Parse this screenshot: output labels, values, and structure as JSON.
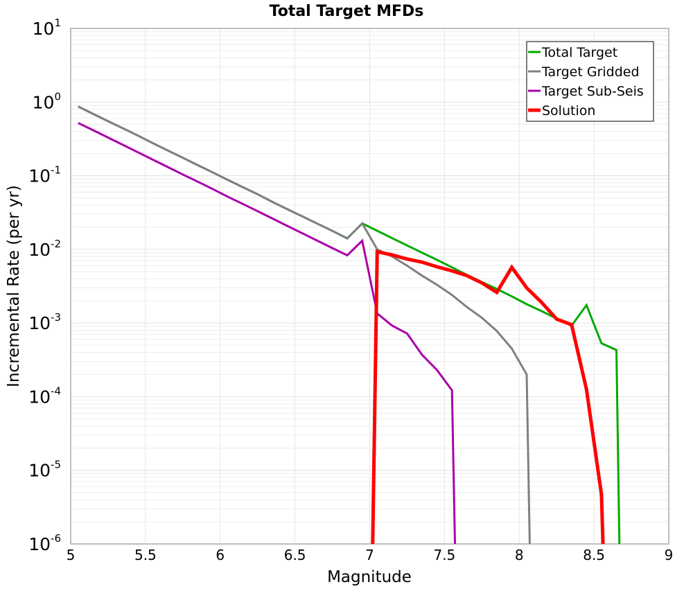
{
  "chart_data": {
    "type": "line",
    "title": "Total Target MFDs",
    "xlabel": "Magnitude",
    "ylabel": "Incremental Rate (per yr)",
    "xlim": [
      5,
      9
    ],
    "ylim": [
      1e-06,
      10
    ],
    "yscale": "log",
    "grid": true,
    "legend_position": "upper right",
    "x_ticks": [
      "5",
      "5.5",
      "6",
      "6.5",
      "7",
      "7.5",
      "8",
      "8.5",
      "9"
    ],
    "y_ticks": [
      {
        "base": "10",
        "exp": "1"
      },
      {
        "base": "10",
        "exp": "0"
      },
      {
        "base": "10",
        "exp": "-1"
      },
      {
        "base": "10",
        "exp": "-2"
      },
      {
        "base": "10",
        "exp": "-3"
      },
      {
        "base": "10",
        "exp": "-4"
      },
      {
        "base": "10",
        "exp": "-5"
      },
      {
        "base": "10",
        "exp": "-6"
      }
    ],
    "series": [
      {
        "name": "Total Target",
        "color": "#00aa00",
        "width": 3,
        "x": [
          5.05,
          5.15,
          5.25,
          5.35,
          5.45,
          5.55,
          5.65,
          5.75,
          5.85,
          5.95,
          6.05,
          6.15,
          6.25,
          6.35,
          6.45,
          6.55,
          6.65,
          6.75,
          6.85,
          6.95,
          7.05,
          7.15,
          7.25,
          7.35,
          7.45,
          7.55,
          7.65,
          7.75,
          7.85,
          7.95,
          8.05,
          8.15,
          8.25,
          8.35,
          8.45,
          8.55,
          8.65,
          8.67
        ],
        "y": [
          0.87,
          0.69,
          0.55,
          0.44,
          0.35,
          0.276,
          0.22,
          0.175,
          0.139,
          0.111,
          0.088,
          0.07,
          0.056,
          0.044,
          0.035,
          0.028,
          0.0223,
          0.0178,
          0.0141,
          0.0225,
          0.0179,
          0.0142,
          0.0113,
          0.009,
          0.0072,
          0.0057,
          0.0045,
          0.0036,
          0.0029,
          0.0023,
          0.0018,
          0.00145,
          0.00115,
          0.00092,
          0.00175,
          0.00053,
          0.00043,
          1e-06
        ]
      },
      {
        "name": "Target Gridded",
        "color": "#808080",
        "width": 3,
        "x": [
          5.05,
          5.15,
          5.25,
          5.35,
          5.45,
          5.55,
          5.65,
          5.75,
          5.85,
          5.95,
          6.05,
          6.15,
          6.25,
          6.35,
          6.45,
          6.55,
          6.65,
          6.75,
          6.85,
          6.95,
          7.05,
          7.15,
          7.25,
          7.35,
          7.45,
          7.55,
          7.65,
          7.75,
          7.85,
          7.95,
          8.05,
          8.07
        ],
        "y": [
          0.87,
          0.69,
          0.55,
          0.44,
          0.35,
          0.276,
          0.22,
          0.175,
          0.139,
          0.111,
          0.088,
          0.07,
          0.056,
          0.044,
          0.035,
          0.028,
          0.0223,
          0.0178,
          0.0141,
          0.0225,
          0.01,
          0.008,
          0.006,
          0.0044,
          0.0033,
          0.0024,
          0.00165,
          0.00118,
          0.00078,
          0.00045,
          0.0002,
          1e-06
        ]
      },
      {
        "name": "Target Sub-Seis",
        "color": "#aa00aa",
        "width": 3,
        "x": [
          5.05,
          5.15,
          5.25,
          5.35,
          5.45,
          5.55,
          5.65,
          5.75,
          5.85,
          5.95,
          6.05,
          6.15,
          6.25,
          6.35,
          6.45,
          6.55,
          6.65,
          6.75,
          6.85,
          6.95,
          7.05,
          7.15,
          7.25,
          7.35,
          7.45,
          7.55,
          7.57
        ],
        "y": [
          0.52,
          0.415,
          0.33,
          0.262,
          0.208,
          0.165,
          0.131,
          0.104,
          0.083,
          0.066,
          0.052,
          0.0415,
          0.033,
          0.0262,
          0.0208,
          0.0165,
          0.0131,
          0.0104,
          0.0083,
          0.0131,
          0.00135,
          0.00092,
          0.00072,
          0.00037,
          0.00023,
          0.000122,
          1e-06
        ]
      },
      {
        "name": "Solution",
        "color": "#ff0000",
        "width": 5,
        "x": [
          7.02,
          7.05,
          7.15,
          7.25,
          7.35,
          7.45,
          7.55,
          7.65,
          7.75,
          7.85,
          7.95,
          8.05,
          8.15,
          8.25,
          8.35,
          8.45,
          8.55,
          8.56
        ],
        "y": [
          1e-06,
          0.0093,
          0.0084,
          0.0074,
          0.0067,
          0.0058,
          0.0051,
          0.0044,
          0.0035,
          0.0026,
          0.0057,
          0.003,
          0.0019,
          0.00113,
          0.00095,
          0.000125,
          4.7e-06,
          1e-06
        ]
      }
    ]
  }
}
